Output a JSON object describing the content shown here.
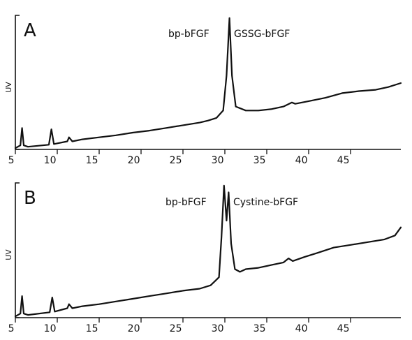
{
  "chart_data": [
    {
      "type": "line",
      "panel": "A",
      "ylabel": "UV",
      "xlim": [
        5,
        51
      ],
      "x_ticks": [
        "5",
        "10",
        "15",
        "20",
        "25",
        "30",
        "35",
        "40",
        "45"
      ],
      "annotations": [
        "bp-bFGF",
        "GSSG-bFGF"
      ],
      "series": [
        {
          "points": [
            [
              5.0,
              0.01
            ],
            [
              5.6,
              0.03
            ],
            [
              5.8,
              0.16
            ],
            [
              6.0,
              0.03
            ],
            [
              6.5,
              0.02
            ],
            [
              9.0,
              0.035
            ],
            [
              9.3,
              0.15
            ],
            [
              9.6,
              0.04
            ],
            [
              11.2,
              0.06
            ],
            [
              11.4,
              0.09
            ],
            [
              11.8,
              0.06
            ],
            [
              13,
              0.075
            ],
            [
              15,
              0.09
            ],
            [
              17,
              0.105
            ],
            [
              19,
              0.125
            ],
            [
              21,
              0.14
            ],
            [
              23,
              0.16
            ],
            [
              25,
              0.18
            ],
            [
              27,
              0.2
            ],
            [
              28,
              0.215
            ],
            [
              29,
              0.235
            ],
            [
              29.8,
              0.29
            ],
            [
              30.2,
              0.55
            ],
            [
              30.55,
              0.98
            ],
            [
              30.85,
              0.55
            ],
            [
              31.3,
              0.32
            ],
            [
              32.5,
              0.29
            ],
            [
              34,
              0.29
            ],
            [
              35.5,
              0.3
            ],
            [
              37,
              0.32
            ],
            [
              38,
              0.35
            ],
            [
              38.4,
              0.34
            ],
            [
              40,
              0.36
            ],
            [
              42,
              0.385
            ],
            [
              44,
              0.42
            ],
            [
              46,
              0.435
            ],
            [
              48,
              0.445
            ],
            [
              49.5,
              0.465
            ],
            [
              51,
              0.495
            ]
          ]
        }
      ]
    },
    {
      "type": "line",
      "panel": "B",
      "ylabel": "UV",
      "xlim": [
        5,
        51
      ],
      "x_ticks": [
        "5",
        "10",
        "15",
        "20",
        "25",
        "30",
        "35",
        "40",
        "45"
      ],
      "annotations": [
        "bp-bFGF",
        "Cystine-bFGF"
      ],
      "series": [
        {
          "points": [
            [
              5.0,
              0.01
            ],
            [
              5.6,
              0.03
            ],
            [
              5.8,
              0.16
            ],
            [
              6.0,
              0.03
            ],
            [
              6.5,
              0.02
            ],
            [
              9.1,
              0.04
            ],
            [
              9.4,
              0.15
            ],
            [
              9.7,
              0.045
            ],
            [
              11.2,
              0.07
            ],
            [
              11.4,
              0.1
            ],
            [
              11.8,
              0.07
            ],
            [
              13,
              0.085
            ],
            [
              15,
              0.1
            ],
            [
              17,
              0.12
            ],
            [
              19,
              0.14
            ],
            [
              21,
              0.16
            ],
            [
              23,
              0.18
            ],
            [
              25,
              0.2
            ],
            [
              27,
              0.215
            ],
            [
              28.3,
              0.24
            ],
            [
              28.8,
              0.27
            ],
            [
              29.3,
              0.3
            ],
            [
              29.6,
              0.6
            ],
            [
              29.9,
              0.98
            ],
            [
              30.2,
              0.72
            ],
            [
              30.45,
              0.93
            ],
            [
              30.75,
              0.55
            ],
            [
              31.2,
              0.36
            ],
            [
              31.8,
              0.34
            ],
            [
              32.5,
              0.36
            ],
            [
              34,
              0.37
            ],
            [
              35.5,
              0.39
            ],
            [
              37,
              0.41
            ],
            [
              37.6,
              0.44
            ],
            [
              38.1,
              0.42
            ],
            [
              39.5,
              0.45
            ],
            [
              41,
              0.48
            ],
            [
              43,
              0.52
            ],
            [
              45,
              0.54
            ],
            [
              47,
              0.56
            ],
            [
              49,
              0.58
            ],
            [
              50.3,
              0.61
            ],
            [
              51,
              0.67
            ]
          ]
        }
      ]
    }
  ]
}
